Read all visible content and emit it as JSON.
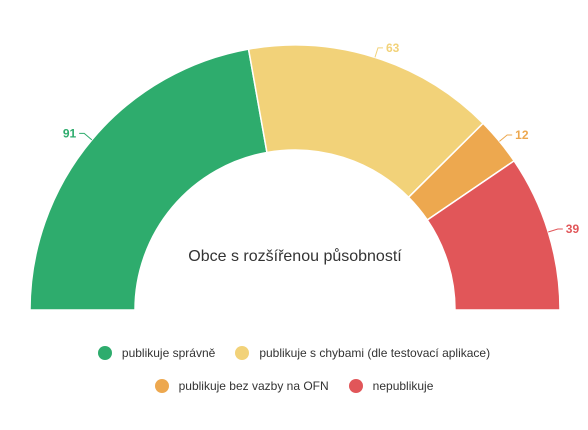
{
  "chart_data": {
    "type": "pie",
    "subtype": "semi-donut",
    "center_label": "Obce s rozšířenou působností",
    "slices": [
      {
        "label": "publikuje správně",
        "value": 91,
        "color": "#2eac6d"
      },
      {
        "label": "publikuje s chybami (dle testovací aplikace)",
        "value": 63,
        "color": "#f2d279"
      },
      {
        "label": "publikuje bez vazby na OFN",
        "value": 12,
        "color": "#eda84f"
      },
      {
        "label": "nepublikuje",
        "value": 39,
        "color": "#e15659"
      }
    ],
    "legend_position": "bottom"
  }
}
